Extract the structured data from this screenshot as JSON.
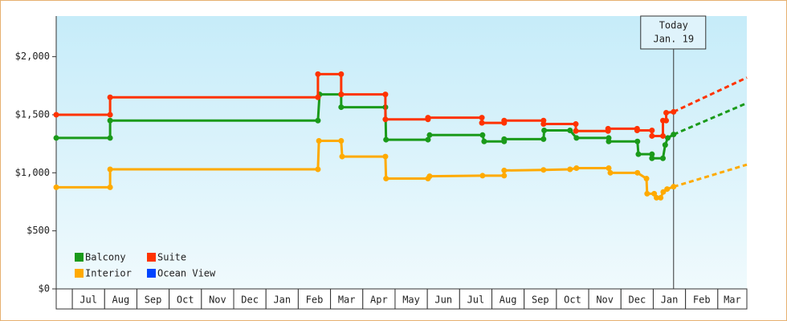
{
  "chart_data": {
    "type": "step-line",
    "ylim": [
      0,
      2350
    ],
    "yticks": [
      {
        "value": 0,
        "label": "$0"
      },
      {
        "value": 500,
        "label": "$500"
      },
      {
        "value": 1000,
        "label": "$1,000"
      },
      {
        "value": 1500,
        "label": "$1,500"
      },
      {
        "value": 2000,
        "label": "$2,000"
      }
    ],
    "xlim": [
      -0.5,
      20.9
    ],
    "xticks": [
      {
        "value": 0.5,
        "label": "Jul"
      },
      {
        "value": 1.5,
        "label": "Aug"
      },
      {
        "value": 2.5,
        "label": "Sep"
      },
      {
        "value": 3.5,
        "label": "Oct"
      },
      {
        "value": 4.5,
        "label": "Nov"
      },
      {
        "value": 5.5,
        "label": "Dec"
      },
      {
        "value": 6.5,
        "label": "Jan"
      },
      {
        "value": 7.5,
        "label": "Feb"
      },
      {
        "value": 8.5,
        "label": "Mar"
      },
      {
        "value": 9.5,
        "label": "Apr"
      },
      {
        "value": 10.5,
        "label": "May"
      },
      {
        "value": 11.5,
        "label": "Jun"
      },
      {
        "value": 12.5,
        "label": "Jul"
      },
      {
        "value": 13.5,
        "label": "Aug"
      },
      {
        "value": 14.5,
        "label": "Sep"
      },
      {
        "value": 15.5,
        "label": "Oct"
      },
      {
        "value": 16.5,
        "label": "Nov"
      },
      {
        "value": 17.5,
        "label": "Dec"
      },
      {
        "value": 18.5,
        "label": "Jan"
      },
      {
        "value": 19.5,
        "label": "Feb"
      },
      {
        "value": 20.5,
        "label": "Mar"
      }
    ],
    "annotation": {
      "x": 18.63,
      "text": [
        "Today",
        "Jan. 19"
      ]
    },
    "series": [
      {
        "name": "Balcony",
        "color": "#1a9a1a",
        "x": [
          -0.5,
          1.17,
          1.17,
          7.61,
          7.66,
          8.33,
          8.33,
          9.7,
          9.72,
          11.02,
          11.07,
          12.71,
          12.76,
          13.38,
          13.38,
          14.6,
          14.62,
          15.42,
          15.62,
          16.62,
          16.62,
          17.51,
          17.54,
          17.96,
          17.96,
          18.3,
          18.37,
          18.45,
          18.63
        ],
        "values": [
          1300,
          1300,
          1450,
          1450,
          1675,
          1675,
          1565,
          1565,
          1285,
          1285,
          1325,
          1325,
          1270,
          1270,
          1290,
          1290,
          1365,
          1365,
          1300,
          1300,
          1270,
          1270,
          1160,
          1160,
          1125,
          1125,
          1240,
          1300,
          1330
        ],
        "projection_x": [
          18.63,
          20.9
        ],
        "projection_values": [
          1330,
          1600
        ]
      },
      {
        "name": "Suite",
        "color": "#ff3300",
        "x": [
          -0.5,
          1.17,
          1.17,
          7.61,
          7.61,
          8.33,
          8.33,
          9.7,
          9.7,
          11.02,
          11.02,
          12.69,
          12.69,
          13.38,
          13.38,
          14.6,
          14.6,
          15.6,
          15.6,
          16.6,
          16.6,
          17.5,
          17.5,
          17.96,
          17.96,
          18.3,
          18.3,
          18.4,
          18.4,
          18.63
        ],
        "values": [
          1500,
          1500,
          1650,
          1650,
          1850,
          1850,
          1675,
          1675,
          1460,
          1460,
          1475,
          1475,
          1430,
          1430,
          1450,
          1450,
          1420,
          1420,
          1360,
          1360,
          1380,
          1380,
          1365,
          1365,
          1317,
          1317,
          1450,
          1450,
          1517,
          1525
        ],
        "projection_x": [
          18.63,
          20.9
        ],
        "projection_values": [
          1525,
          1820
        ]
      },
      {
        "name": "Interior",
        "color": "#ffaa00",
        "x": [
          -0.5,
          1.17,
          1.17,
          7.61,
          7.64,
          8.33,
          8.36,
          9.7,
          9.72,
          11.02,
          11.07,
          12.71,
          13.38,
          13.38,
          14.6,
          15.42,
          15.62,
          16.62,
          16.67,
          17.51,
          17.79,
          17.81,
          18.03,
          18.1,
          18.23,
          18.31,
          18.43,
          18.63
        ],
        "values": [
          875,
          875,
          1030,
          1030,
          1275,
          1275,
          1140,
          1140,
          950,
          950,
          970,
          975,
          975,
          1020,
          1025,
          1030,
          1040,
          1040,
          1000,
          1000,
          950,
          820,
          820,
          785,
          785,
          835,
          860,
          880
        ],
        "projection_x": [
          18.63,
          20.9
        ],
        "projection_values": [
          880,
          1070
        ]
      },
      {
        "name": "Ocean View",
        "color": "#0044ff",
        "x": [],
        "values": [],
        "projection_x": [],
        "projection_values": []
      }
    ]
  }
}
